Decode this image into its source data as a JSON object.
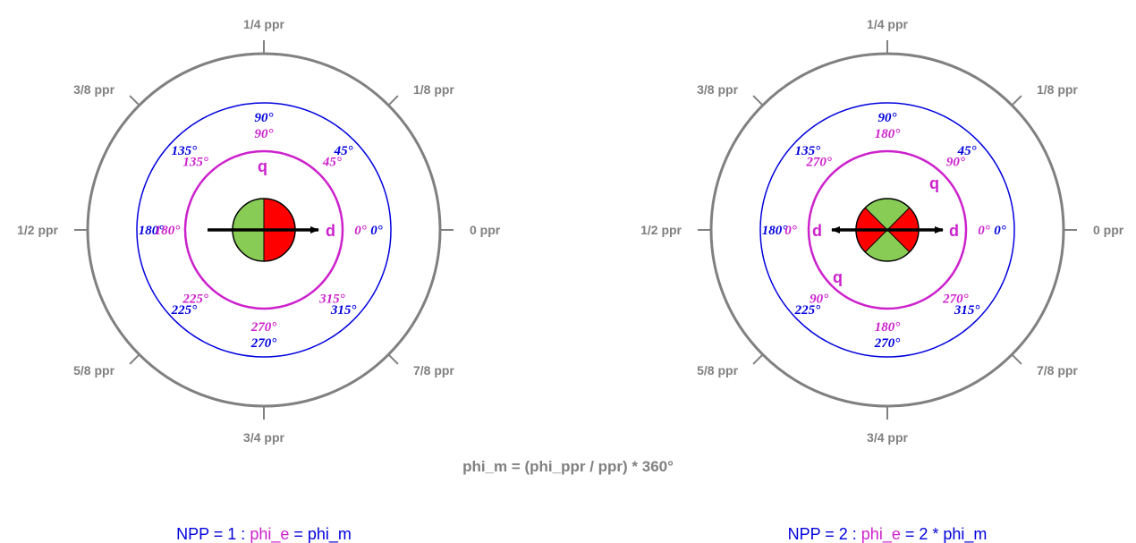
{
  "colors": {
    "outer_ring": "#808080",
    "mechanical_ring": "#0000dd",
    "electrical_ring": "#cc22cc",
    "north_pole": "#ff0000",
    "south_pole": "#88cc55",
    "arrow": "#000000"
  },
  "ppr_labels": [
    "0 ppr",
    "1/8 ppr",
    "1/4 ppr",
    "3/8 ppr",
    "1/2 ppr",
    "5/8 ppr",
    "3/4 ppr",
    "7/8 ppr"
  ],
  "mechanical_angles": [
    "0°",
    "45°",
    "90°",
    "135°",
    "180°",
    "225°",
    "270°",
    "315°"
  ],
  "left": {
    "electrical_angles": [
      "0°",
      "45°",
      "90°",
      "135°",
      "180°",
      "225°",
      "270°",
      "315°"
    ],
    "d_labels": [
      "d"
    ],
    "q_labels": [
      "q"
    ],
    "caption": {
      "prefix": "NPP = 1 : ",
      "highlight": "phi_e",
      "suffix": " = phi_m"
    }
  },
  "right": {
    "electrical_angles": [
      "0°",
      "90°",
      "180°",
      "270°",
      "0°",
      "90°",
      "180°",
      "270°"
    ],
    "d_labels": [
      "d",
      "d"
    ],
    "q_labels": [
      "q",
      "q"
    ],
    "caption": {
      "prefix": "NPP = 2 : ",
      "highlight": "phi_e",
      "suffix": " = 2 * phi_m"
    }
  },
  "formula": "phi_m = (phi_ppr / ppr) * 360°"
}
